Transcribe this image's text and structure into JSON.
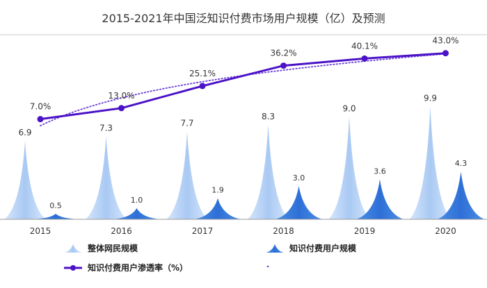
{
  "chart_data": {
    "type": "bar",
    "title": "2015-2021年中国泛知识付费市场用户规模（亿）及预测",
    "categories": [
      "2015",
      "2016",
      "2017",
      "2018",
      "2019",
      "2020"
    ],
    "series": [
      {
        "name": "整体网民规模",
        "kind": "spike",
        "values": [
          6.9,
          7.3,
          7.7,
          8.3,
          9.0,
          9.9
        ],
        "labels": [
          "6.9",
          "7.3",
          "7.7",
          "8.3",
          "9.0",
          "9.9"
        ]
      },
      {
        "name": "知识付费用户规模",
        "kind": "spike",
        "values": [
          0.5,
          1.0,
          1.9,
          3.0,
          3.6,
          4.3
        ],
        "labels": [
          "0.5",
          "1.0",
          "1.9",
          "3.0",
          "3.6",
          "4.3"
        ]
      },
      {
        "name": "知识付费用户渗透率（%）",
        "kind": "line",
        "values": [
          7.0,
          13.0,
          25.1,
          36.2,
          40.1,
          43.0
        ],
        "labels": [
          "7.0%",
          "13.0%",
          "25.1%",
          "36.2%",
          "40.1%",
          "43.0%"
        ]
      }
    ],
    "trendline": {
      "style": "dotted",
      "of": "知识付费用户渗透率（%）"
    },
    "legend_position": "bottom",
    "grid": false
  },
  "colors": {
    "netizen_light": "#d6e6fb",
    "netizen_dark": "#a9c9f3",
    "paid_light": "#4d8fe6",
    "paid_dark": "#2d6fd6",
    "line": "#4b12c6",
    "trend": "#6a3bd8",
    "axis": "#9a9a9a",
    "label": "#333333"
  }
}
